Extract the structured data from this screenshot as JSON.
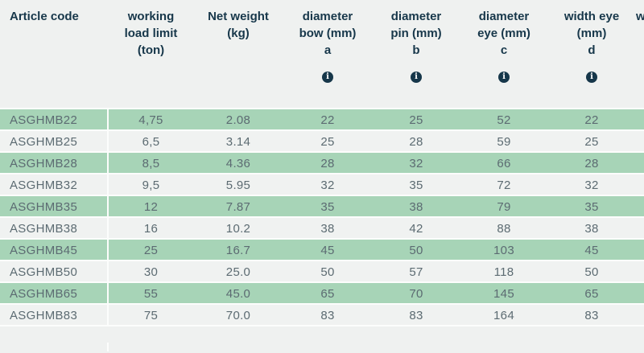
{
  "table": {
    "header": {
      "cols": [
        {
          "name": "article-code",
          "lines": [
            "Article code"
          ],
          "letter": "",
          "info": false
        },
        {
          "name": "working-load-limit",
          "lines": [
            "working",
            "load limit",
            "(ton)"
          ],
          "letter": "",
          "info": false
        },
        {
          "name": "net-weight",
          "lines": [
            "Net weight",
            "(kg)"
          ],
          "letter": "",
          "info": false
        },
        {
          "name": "diameter-bow",
          "lines": [
            "diameter",
            "bow (mm)"
          ],
          "letter": "a",
          "info": true
        },
        {
          "name": "diameter-pin",
          "lines": [
            "diameter",
            "pin (mm)"
          ],
          "letter": "b",
          "info": true
        },
        {
          "name": "diameter-eye",
          "lines": [
            "diameter",
            "eye (mm)"
          ],
          "letter": "c",
          "info": true
        },
        {
          "name": "width-eye",
          "lines": [
            "width eye",
            "(mm)"
          ],
          "letter": "d",
          "info": true
        },
        {
          "name": "next-column-clipped",
          "lines": [
            "w"
          ],
          "letter": "",
          "info": false
        }
      ],
      "info_glyph": "i"
    },
    "rows": [
      [
        "ASGHMB22",
        "4,75",
        "2.08",
        "22",
        "25",
        "52",
        "22"
      ],
      [
        "ASGHMB25",
        "6,5",
        "3.14",
        "25",
        "28",
        "59",
        "25"
      ],
      [
        "ASGHMB28",
        "8,5",
        "4.36",
        "28",
        "32",
        "66",
        "28"
      ],
      [
        "ASGHMB32",
        "9,5",
        "5.95",
        "32",
        "35",
        "72",
        "32"
      ],
      [
        "ASGHMB35",
        "12",
        "7.87",
        "35",
        "38",
        "79",
        "35"
      ],
      [
        "ASGHMB38",
        "16",
        "10.2",
        "38",
        "42",
        "88",
        "38"
      ],
      [
        "ASGHMB45",
        "25",
        "16.7",
        "45",
        "50",
        "103",
        "45"
      ],
      [
        "ASGHMB50",
        "30",
        "25.0",
        "50",
        "57",
        "118",
        "50"
      ],
      [
        "ASGHMB65",
        "55",
        "45.0",
        "65",
        "70",
        "145",
        "65"
      ],
      [
        "ASGHMB83",
        "75",
        "70.0",
        "83",
        "83",
        "164",
        "83"
      ]
    ],
    "colors": {
      "row_green": "#a7d4b7",
      "row_gray": "#f0f2f1",
      "background": "#eff1f0",
      "header_text": "#17374a",
      "cell_text": "#5c6b72",
      "row_gap": "#fcfdfc",
      "info_icon_bg": "#16374a"
    }
  }
}
